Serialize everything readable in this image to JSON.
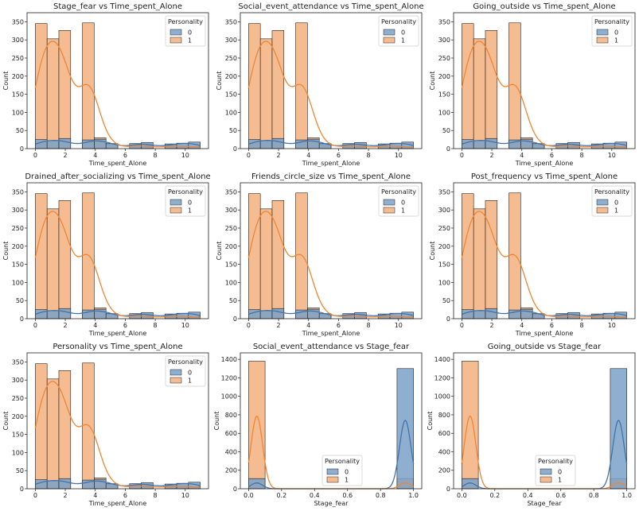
{
  "colors": {
    "class0_fill": "#7ba1c8",
    "class1_fill": "#f3b07f",
    "class0_line": "#3f74ac",
    "class1_line": "#ef8635",
    "edge": "#222222"
  },
  "chart_data": [
    {
      "type": "bar",
      "title": "Stage_fear vs Time_spent_Alone",
      "xlabel": "Time_spent_Alone",
      "ylabel": "Count",
      "xlim": [
        -0.55,
        11.55
      ],
      "ylim": [
        0,
        375
      ],
      "xticks": [
        0,
        2,
        4,
        6,
        8,
        10
      ],
      "yticks": [
        0,
        50,
        100,
        150,
        200,
        250,
        300,
        350
      ],
      "legend_title": "Personality",
      "legend_position": "top-right",
      "series": [
        {
          "name": "0",
          "values": [
            25,
            22,
            28,
            0,
            24,
            26,
            14,
            0,
            14,
            17,
            0,
            13,
            15,
            18
          ]
        },
        {
          "name": "1",
          "values": [
            345,
            303,
            326,
            0,
            347,
            30,
            12,
            0,
            10,
            8,
            0,
            9,
            7,
            5
          ]
        }
      ]
    },
    {
      "type": "bar",
      "title": "Social_event_attendance vs Time_spent_Alone",
      "xlabel": "Time_spent_Alone",
      "ylabel": "Count",
      "xlim": [
        -0.55,
        11.55
      ],
      "ylim": [
        0,
        375
      ],
      "xticks": [
        0,
        2,
        4,
        6,
        8,
        10
      ],
      "yticks": [
        0,
        50,
        100,
        150,
        200,
        250,
        300,
        350
      ],
      "legend_title": "Personality",
      "legend_position": "top-right",
      "series": [
        {
          "name": "0",
          "values": [
            25,
            22,
            28,
            0,
            24,
            26,
            14,
            0,
            14,
            17,
            0,
            13,
            15,
            18
          ]
        },
        {
          "name": "1",
          "values": [
            345,
            303,
            326,
            0,
            347,
            30,
            12,
            0,
            10,
            8,
            0,
            9,
            7,
            5
          ]
        }
      ]
    },
    {
      "type": "bar",
      "title": "Going_outside vs Time_spent_Alone",
      "xlabel": "Time_spent_Alone",
      "ylabel": "Count",
      "xlim": [
        -0.55,
        11.55
      ],
      "ylim": [
        0,
        375
      ],
      "xticks": [
        0,
        2,
        4,
        6,
        8,
        10
      ],
      "yticks": [
        0,
        50,
        100,
        150,
        200,
        250,
        300,
        350
      ],
      "legend_title": "Personality",
      "legend_position": "top-right",
      "series": [
        {
          "name": "0",
          "values": [
            25,
            22,
            28,
            0,
            24,
            26,
            14,
            0,
            14,
            17,
            0,
            13,
            15,
            18
          ]
        },
        {
          "name": "1",
          "values": [
            345,
            303,
            326,
            0,
            347,
            30,
            12,
            0,
            10,
            8,
            0,
            9,
            7,
            5
          ]
        }
      ]
    },
    {
      "type": "bar",
      "title": "Drained_after_socializing vs Time_spent_Alone",
      "xlabel": "Time_spent_Alone",
      "ylabel": "Count",
      "xlim": [
        -0.55,
        11.55
      ],
      "ylim": [
        0,
        375
      ],
      "xticks": [
        0,
        2,
        4,
        6,
        8,
        10
      ],
      "yticks": [
        0,
        50,
        100,
        150,
        200,
        250,
        300,
        350
      ],
      "legend_title": "Personality",
      "legend_position": "top-right",
      "series": [
        {
          "name": "0",
          "values": [
            25,
            22,
            28,
            0,
            24,
            26,
            14,
            0,
            14,
            17,
            0,
            13,
            15,
            18
          ]
        },
        {
          "name": "1",
          "values": [
            345,
            303,
            326,
            0,
            347,
            30,
            12,
            0,
            10,
            8,
            0,
            9,
            7,
            5
          ]
        }
      ]
    },
    {
      "type": "bar",
      "title": "Friends_circle_size vs Time_spent_Alone",
      "xlabel": "Time_spent_Alone",
      "ylabel": "Count",
      "xlim": [
        -0.55,
        11.55
      ],
      "ylim": [
        0,
        375
      ],
      "xticks": [
        0,
        2,
        4,
        6,
        8,
        10
      ],
      "yticks": [
        0,
        50,
        100,
        150,
        200,
        250,
        300,
        350
      ],
      "legend_title": "Personality",
      "legend_position": "top-right",
      "series": [
        {
          "name": "0",
          "values": [
            25,
            22,
            28,
            0,
            24,
            26,
            14,
            0,
            14,
            17,
            0,
            13,
            15,
            18
          ]
        },
        {
          "name": "1",
          "values": [
            345,
            303,
            326,
            0,
            347,
            30,
            12,
            0,
            10,
            8,
            0,
            9,
            7,
            5
          ]
        }
      ]
    },
    {
      "type": "bar",
      "title": "Post_frequency vs Time_spent_Alone",
      "xlabel": "Time_spent_Alone",
      "ylabel": "Count",
      "xlim": [
        -0.55,
        11.55
      ],
      "ylim": [
        0,
        375
      ],
      "xticks": [
        0,
        2,
        4,
        6,
        8,
        10
      ],
      "yticks": [
        0,
        50,
        100,
        150,
        200,
        250,
        300,
        350
      ],
      "legend_title": "Personality",
      "legend_position": "top-right",
      "series": [
        {
          "name": "0",
          "values": [
            25,
            22,
            28,
            0,
            24,
            26,
            14,
            0,
            14,
            17,
            0,
            13,
            15,
            18
          ]
        },
        {
          "name": "1",
          "values": [
            345,
            303,
            326,
            0,
            347,
            30,
            12,
            0,
            10,
            8,
            0,
            9,
            7,
            5
          ]
        }
      ]
    },
    {
      "type": "bar",
      "title": "Personality vs Time_spent_Alone",
      "xlabel": "Time_spent_Alone",
      "ylabel": "Count",
      "xlim": [
        -0.55,
        11.55
      ],
      "ylim": [
        0,
        375
      ],
      "xticks": [
        0,
        2,
        4,
        6,
        8,
        10
      ],
      "yticks": [
        0,
        50,
        100,
        150,
        200,
        250,
        300,
        350
      ],
      "legend_title": "Personality",
      "legend_position": "top-right",
      "series": [
        {
          "name": "0",
          "values": [
            25,
            22,
            28,
            0,
            24,
            26,
            14,
            0,
            14,
            17,
            0,
            13,
            15,
            18
          ]
        },
        {
          "name": "1",
          "values": [
            345,
            303,
            326,
            0,
            347,
            30,
            12,
            0,
            10,
            8,
            0,
            9,
            7,
            5
          ]
        }
      ]
    },
    {
      "type": "bar",
      "title": "Social_event_attendance vs Stage_fear",
      "xlabel": "Stage_fear",
      "ylabel": "Count",
      "xlim": [
        -0.05,
        1.05
      ],
      "ylim": [
        0,
        1470
      ],
      "xticks": [
        0.0,
        0.2,
        0.4,
        0.6,
        0.8,
        1.0
      ],
      "yticks": [
        0,
        200,
        400,
        600,
        800,
        1000,
        1200,
        1400
      ],
      "legend_title": "Personality",
      "legend_position": "lower center",
      "series": [
        {
          "name": "0",
          "values": [
            110,
            0,
            0,
            0,
            0,
            0,
            0,
            0,
            0,
            1300
          ]
        },
        {
          "name": "1",
          "values": [
            1380,
            0,
            0,
            0,
            0,
            0,
            0,
            0,
            0,
            110
          ]
        }
      ]
    },
    {
      "type": "bar",
      "title": "Going_outside vs Stage_fear",
      "xlabel": "Stage_fear",
      "ylabel": "Count",
      "xlim": [
        -0.05,
        1.05
      ],
      "ylim": [
        0,
        1470
      ],
      "xticks": [
        0.0,
        0.2,
        0.4,
        0.6,
        0.8,
        1.0
      ],
      "yticks": [
        0,
        200,
        400,
        600,
        800,
        1000,
        1200,
        1400
      ],
      "legend_title": "Personality",
      "legend_position": "lower center",
      "series": [
        {
          "name": "0",
          "values": [
            110,
            0,
            0,
            0,
            0,
            0,
            0,
            0,
            0,
            1300
          ]
        },
        {
          "name": "1",
          "values": [
            1380,
            0,
            0,
            0,
            0,
            0,
            0,
            0,
            0,
            110
          ]
        }
      ]
    }
  ]
}
